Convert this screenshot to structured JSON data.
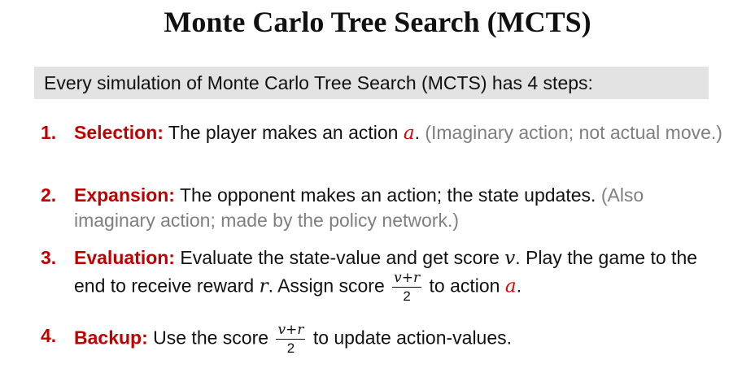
{
  "title": "Monte Carlo Tree Search (MCTS)",
  "intro": "Every simulation of Monte Carlo Tree Search (MCTS) has 4 steps:",
  "steps": [
    {
      "number": "1.",
      "heading": "Selection:",
      "text": "The player makes an action",
      "var": "a",
      "end": ".",
      "note": "(Imaginary action; not actual move.)"
    },
    {
      "number": "2.",
      "heading": "Expansion:",
      "text": "The opponent makes an action; the state updates.",
      "note": "(Also imaginary action; made by the policy network.)"
    },
    {
      "number": "3.",
      "heading": "Evaluation:",
      "text1": "Evaluate the state-value and get score",
      "var1": "v",
      "text2": ". Play the game to the end to receive reward",
      "var2": "r",
      "text3": ". Assign score",
      "frac_num": "v+r",
      "frac_den": "2",
      "text4": "to action",
      "var3": "a",
      "end": "."
    },
    {
      "number": "4.",
      "heading": "Backup:",
      "text1": "Use the score",
      "frac_num": "v+r",
      "frac_den": "2",
      "text2": "to update action-values."
    }
  ]
}
